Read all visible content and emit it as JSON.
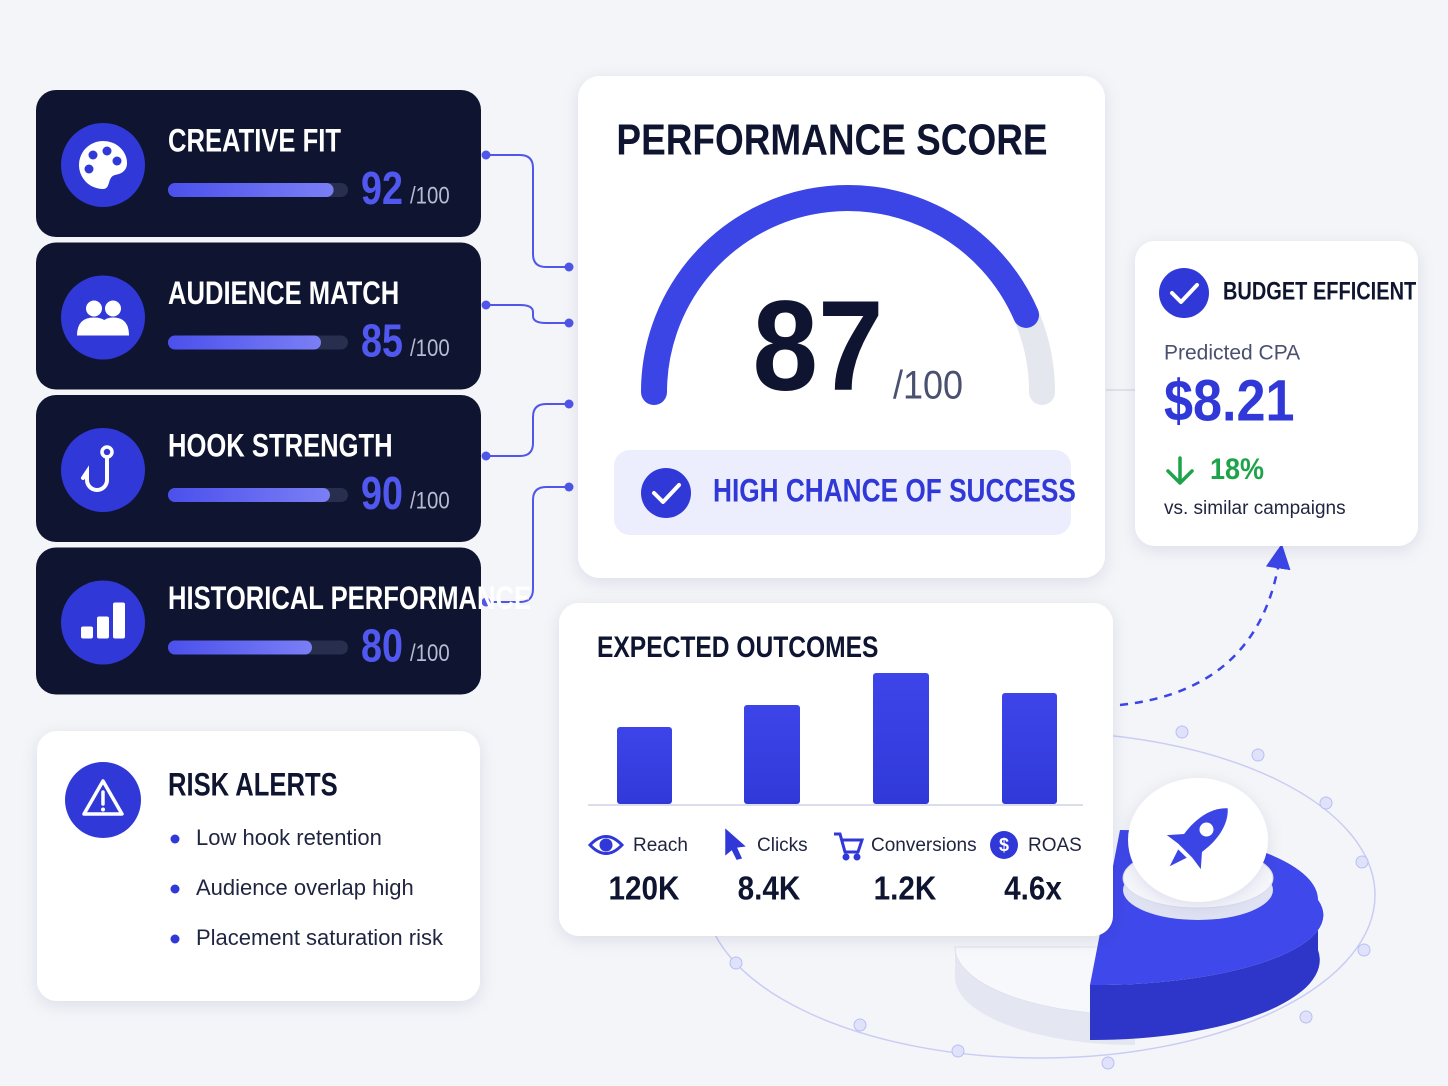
{
  "metrics": [
    {
      "label": "CREATIVE FIT",
      "score": 92
    },
    {
      "label": "AUDIENCE MATCH",
      "score": 85
    },
    {
      "label": "HOOK STRENGTH",
      "score": 90
    },
    {
      "label": "HISTORICAL PERFORMANCE",
      "score": 80
    }
  ],
  "score_max": {
    "value": 100,
    "label": "/100"
  },
  "score_card": {
    "title": "PERFORMANCE SCORE",
    "score": 87,
    "status": "HIGH CHANCE OF SUCCESS"
  },
  "budget": {
    "title": "BUDGET EFFICIENT",
    "label": "Predicted CPA",
    "value": "$8.21",
    "change": "18%",
    "note": "vs. similar campaigns"
  },
  "outcomes": {
    "title": "EXPECTED OUTCOMES",
    "items": [
      {
        "label": "Reach",
        "value": "120K"
      },
      {
        "label": "Clicks",
        "value": "8.4K"
      },
      {
        "label": "Conversions",
        "value": "1.2K"
      },
      {
        "label": "ROAS",
        "value": "4.6x"
      }
    ]
  },
  "risks": {
    "title": "RISK ALERTS",
    "items": [
      "Low hook retention",
      "Audience overlap high",
      "Placement saturation risk"
    ]
  }
}
